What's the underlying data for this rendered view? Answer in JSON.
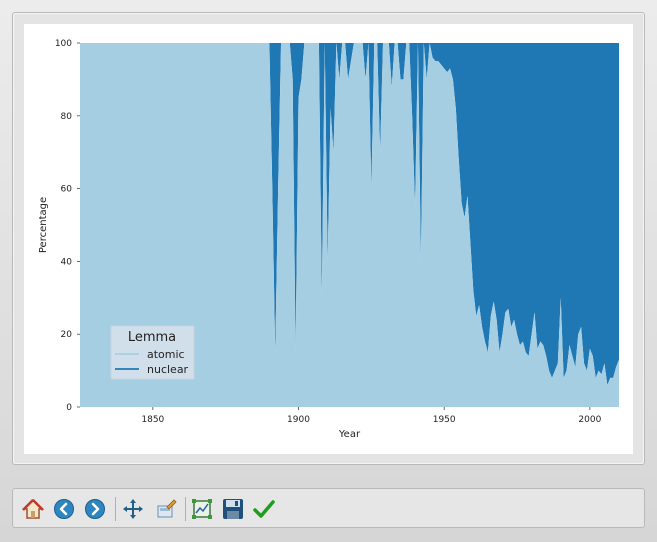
{
  "chart_data": {
    "type": "area",
    "stacked": true,
    "normalized_percent": true,
    "xlabel": "Year",
    "ylabel": "Percentage",
    "xlim": [
      1825,
      2010
    ],
    "ylim": [
      0,
      100
    ],
    "xticks": [
      "1850",
      "1900",
      "1950",
      "2000"
    ],
    "yticks": [
      "0",
      "20",
      "40",
      "60",
      "80",
      "100"
    ],
    "legend": {
      "title": "Lemma",
      "position": "lower-left"
    },
    "series": [
      {
        "name": "atomic",
        "color": "#a6cee3"
      },
      {
        "name": "nuclear",
        "color": "#1f78b4"
      }
    ],
    "x": [
      1825,
      1890,
      1891,
      1892,
      1893,
      1894,
      1896,
      1897,
      1898,
      1899,
      1900,
      1901,
      1902,
      1903,
      1904,
      1905,
      1906,
      1907,
      1908,
      1909,
      1910,
      1911,
      1912,
      1913,
      1914,
      1915,
      1916,
      1917,
      1918,
      1919,
      1920,
      1921,
      1922,
      1923,
      1924,
      1925,
      1926,
      1927,
      1928,
      1929,
      1930,
      1931,
      1932,
      1933,
      1934,
      1935,
      1936,
      1937,
      1938,
      1939,
      1940,
      1941,
      1942,
      1943,
      1944,
      1945,
      1946,
      1947,
      1948,
      1949,
      1950,
      1951,
      1952,
      1953,
      1954,
      1955,
      1956,
      1957,
      1958,
      1959,
      1960,
      1961,
      1962,
      1963,
      1964,
      1965,
      1966,
      1967,
      1968,
      1969,
      1970,
      1971,
      1972,
      1973,
      1974,
      1975,
      1976,
      1977,
      1978,
      1979,
      1980,
      1981,
      1982,
      1983,
      1984,
      1985,
      1986,
      1987,
      1988,
      1989,
      1990,
      1991,
      1992,
      1993,
      1994,
      1995,
      1996,
      1997,
      1998,
      1999,
      2000,
      2001,
      2002,
      2003,
      2004,
      2005,
      2006,
      2007,
      2008,
      2009,
      2010
    ],
    "atomic": [
      100,
      100,
      60,
      15,
      60,
      100,
      100,
      100,
      90,
      15,
      85,
      90,
      100,
      100,
      100,
      100,
      100,
      100,
      30,
      100,
      40,
      82,
      70,
      100,
      90,
      100,
      100,
      90,
      95,
      100,
      100,
      100,
      100,
      90,
      100,
      60,
      100,
      100,
      70,
      100,
      100,
      100,
      88,
      100,
      100,
      90,
      90,
      100,
      100,
      80,
      55,
      100,
      40,
      100,
      90,
      100,
      96,
      95,
      95,
      94,
      93,
      92,
      93,
      90,
      82,
      68,
      56,
      52,
      58,
      45,
      32,
      25,
      28,
      22,
      18,
      15,
      25,
      29,
      24,
      15,
      20,
      26,
      27,
      22,
      24,
      20,
      17,
      18,
      15,
      14,
      20,
      26,
      16,
      18,
      17,
      14,
      10,
      8,
      10,
      12,
      30,
      8,
      10,
      17,
      14,
      11,
      20,
      22,
      12,
      10,
      16,
      14,
      8,
      10,
      9,
      12,
      6,
      8,
      8,
      11,
      13
    ],
    "nuclear": [
      0,
      0,
      40,
      85,
      40,
      0,
      0,
      0,
      10,
      85,
      15,
      10,
      0,
      0,
      0,
      0,
      0,
      0,
      70,
      0,
      60,
      18,
      30,
      0,
      10,
      0,
      0,
      10,
      5,
      0,
      0,
      0,
      0,
      10,
      0,
      40,
      0,
      0,
      30,
      0,
      0,
      0,
      12,
      0,
      0,
      10,
      10,
      0,
      0,
      20,
      45,
      0,
      60,
      0,
      10,
      0,
      4,
      5,
      5,
      6,
      7,
      8,
      7,
      10,
      18,
      32,
      44,
      48,
      42,
      55,
      68,
      75,
      72,
      78,
      82,
      85,
      75,
      71,
      76,
      85,
      80,
      74,
      73,
      78,
      76,
      80,
      83,
      82,
      85,
      86,
      80,
      74,
      84,
      82,
      83,
      86,
      90,
      92,
      90,
      88,
      70,
      92,
      90,
      83,
      86,
      89,
      80,
      78,
      88,
      90,
      84,
      86,
      92,
      90,
      91,
      88,
      94,
      92,
      92,
      89,
      87
    ]
  },
  "toolbar": {
    "buttons": [
      "home-icon",
      "back-arrow-icon",
      "forward-arrow-icon",
      "pan-icon",
      "configure-subplots-icon",
      "zoom-rect-icon",
      "save-icon",
      "check-icon"
    ]
  }
}
